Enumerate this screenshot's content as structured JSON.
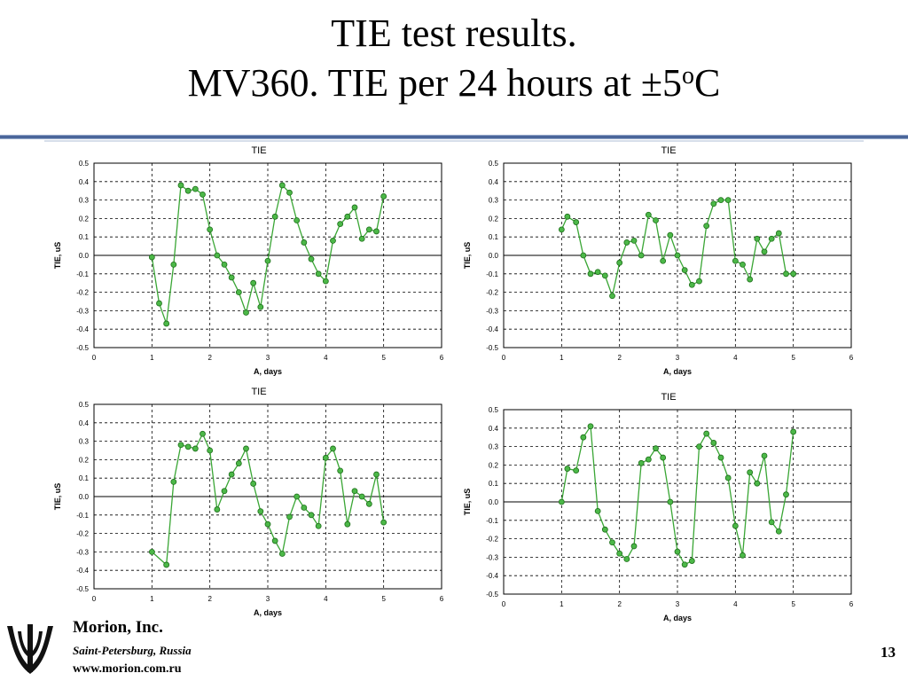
{
  "slide": {
    "title_line1": "TIE test results.",
    "title_line2_pre": "MV360. TIE per 24 hours at ±5",
    "title_line2_sup": "o",
    "title_line2_post": "C",
    "company": "Morion, Inc.",
    "city": "Saint-Petersburg, Russia",
    "url": "www.morion.com.ru",
    "page_number": "13",
    "line_color": "#3aa635",
    "marker_color": "#4cb848"
  },
  "chart_data": [
    {
      "type": "line",
      "title": "TIE",
      "xlabel": "A, days",
      "ylabel": "TIE, uS",
      "xlim": [
        0,
        6
      ],
      "ylim": [
        -0.5,
        0.5
      ],
      "grid": true,
      "x": [
        1.0,
        1.125,
        1.25,
        1.375,
        1.5,
        1.625,
        1.75,
        1.875,
        2.0,
        2.125,
        2.25,
        2.375,
        2.5,
        2.625,
        2.75,
        2.875,
        3.0,
        3.125,
        3.25,
        3.375,
        3.5,
        3.625,
        3.75,
        3.875,
        4.0,
        4.125,
        4.25,
        4.375,
        4.5,
        4.625,
        4.75,
        4.875,
        5.0
      ],
      "y": [
        -0.01,
        -0.26,
        -0.37,
        -0.05,
        0.38,
        0.35,
        0.36,
        0.33,
        0.14,
        0.0,
        -0.05,
        -0.12,
        -0.2,
        -0.31,
        -0.15,
        -0.28,
        -0.03,
        0.21,
        0.38,
        0.34,
        0.19,
        0.07,
        -0.02,
        -0.1,
        -0.14,
        0.08,
        0.17,
        0.21,
        0.26,
        0.09,
        0.14,
        0.13,
        0.32
      ]
    },
    {
      "type": "line",
      "title": "TIE",
      "xlabel": "A, days",
      "ylabel": "TIE, uS",
      "xlim": [
        0,
        6
      ],
      "ylim": [
        -0.5,
        0.5
      ],
      "grid": true,
      "x": [
        1.0,
        1.1,
        1.25,
        1.375,
        1.5,
        1.625,
        1.75,
        1.875,
        2.0,
        2.125,
        2.25,
        2.375,
        2.5,
        2.625,
        2.75,
        2.875,
        3.0,
        3.125,
        3.25,
        3.375,
        3.5,
        3.625,
        3.75,
        3.875,
        4.0,
        4.125,
        4.25,
        4.375,
        4.5,
        4.625,
        4.75,
        4.875,
        5.0
      ],
      "y": [
        0.14,
        0.21,
        0.18,
        0.0,
        -0.1,
        -0.09,
        -0.11,
        -0.22,
        -0.04,
        0.07,
        0.08,
        0.0,
        0.22,
        0.19,
        -0.03,
        0.11,
        0.0,
        -0.08,
        -0.16,
        -0.14,
        0.16,
        0.28,
        0.3,
        0.3,
        -0.03,
        -0.05,
        -0.13,
        0.09,
        0.02,
        0.09,
        0.12,
        -0.1,
        -0.1
      ]
    },
    {
      "type": "line",
      "title": "TIE",
      "xlabel": "A, days",
      "ylabel": "TIE, uS",
      "xlim": [
        0,
        6
      ],
      "ylim": [
        -0.5,
        0.5
      ],
      "grid": true,
      "x": [
        1.0,
        1.25,
        1.375,
        1.5,
        1.625,
        1.75,
        1.875,
        2.0,
        2.125,
        2.25,
        2.375,
        2.5,
        2.625,
        2.75,
        2.875,
        3.0,
        3.125,
        3.25,
        3.375,
        3.5,
        3.625,
        3.75,
        3.875,
        4.0,
        4.125,
        4.25,
        4.375,
        4.5,
        4.625,
        4.75,
        4.875,
        5.0
      ],
      "y": [
        -0.3,
        -0.37,
        0.08,
        0.28,
        0.27,
        0.26,
        0.34,
        0.25,
        -0.07,
        0.03,
        0.12,
        0.18,
        0.26,
        0.07,
        -0.08,
        -0.15,
        -0.24,
        -0.31,
        -0.11,
        0.0,
        -0.06,
        -0.1,
        -0.16,
        0.21,
        0.26,
        0.14,
        -0.15,
        0.03,
        0.0,
        -0.04,
        0.12,
        -0.14
      ]
    },
    {
      "type": "line",
      "title": "TIE",
      "xlabel": "A, days",
      "ylabel": "TIE, uS",
      "xlim": [
        0,
        6
      ],
      "ylim": [
        -0.5,
        0.5
      ],
      "grid": true,
      "x": [
        1.0,
        1.1,
        1.25,
        1.375,
        1.5,
        1.625,
        1.75,
        1.875,
        2.0,
        2.125,
        2.25,
        2.375,
        2.5,
        2.625,
        2.75,
        2.875,
        3.0,
        3.125,
        3.25,
        3.375,
        3.5,
        3.625,
        3.75,
        3.875,
        4.0,
        4.125,
        4.25,
        4.375,
        4.5,
        4.625,
        4.75,
        4.875,
        5.0
      ],
      "y": [
        0.0,
        0.18,
        0.17,
        0.35,
        0.41,
        -0.05,
        -0.15,
        -0.22,
        -0.28,
        -0.31,
        -0.24,
        0.21,
        0.23,
        0.29,
        0.24,
        0.0,
        -0.27,
        -0.34,
        -0.32,
        0.3,
        0.37,
        0.32,
        0.24,
        0.13,
        -0.13,
        -0.29,
        0.16,
        0.1,
        0.25,
        -0.11,
        -0.16,
        0.04,
        0.38
      ]
    }
  ]
}
